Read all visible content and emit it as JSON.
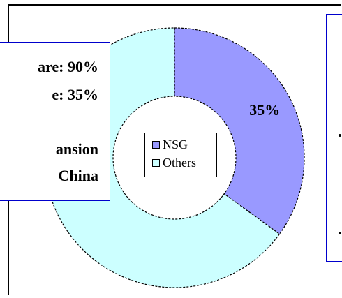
{
  "chart_data": {
    "type": "pie",
    "variant": "doughnut",
    "categories": [
      "NSG",
      "Others"
    ],
    "values": [
      35,
      65
    ],
    "colors": [
      "#9999ff",
      "#ccffff"
    ],
    "data_labels": [
      "35%",
      ""
    ],
    "legend": {
      "placement": "center",
      "entries": [
        "NSG",
        "Others"
      ]
    },
    "title": "",
    "xlabel": "",
    "ylabel": ""
  },
  "share_box": {
    "line1": "are: 90%",
    "line2": "e: 35%",
    "line3": "ansion",
    "line4": "China"
  }
}
